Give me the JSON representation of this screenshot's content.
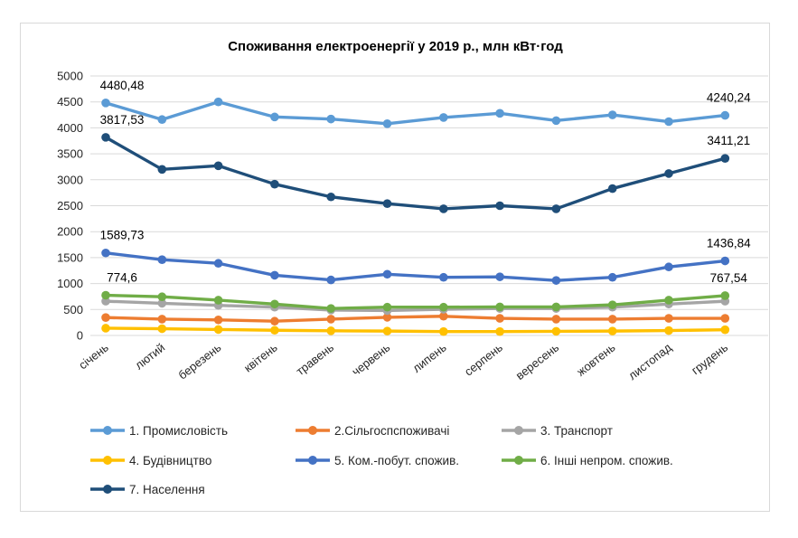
{
  "chart_data": {
    "type": "line",
    "title": "Споживання електроенергії у 2019 р., млн кВт·год",
    "xlabel": "",
    "ylabel": "",
    "ylim": [
      0,
      5000
    ],
    "ytick_step": 500,
    "grid": true,
    "legend_position": "bottom",
    "categories": [
      "січень",
      "лютий",
      "березень",
      "квітень",
      "травень",
      "червень",
      "липень",
      "серпень",
      "вересень",
      "жовтень",
      "листопад",
      "грудень"
    ],
    "series": [
      {
        "name": "1. Промисловість",
        "color": "#5B9BD5",
        "values": [
          4480.48,
          4160,
          4500,
          4210,
          4170,
          4080,
          4200,
          4280,
          4140,
          4250,
          4120,
          4240.24
        ]
      },
      {
        "name": "2.Сільгоспспоживачі",
        "color": "#ED7D31",
        "values": [
          345,
          315,
          300,
          275,
          315,
          350,
          370,
          330,
          315,
          315,
          330,
          330
        ]
      },
      {
        "name": "3. Транспорт",
        "color": "#A5A5A5",
        "values": [
          660,
          620,
          580,
          545,
          490,
          480,
          505,
          520,
          520,
          545,
          605,
          660
        ]
      },
      {
        "name": "4. Будівництво",
        "color": "#FFC000",
        "values": [
          140,
          130,
          115,
          100,
          90,
          85,
          75,
          75,
          80,
          85,
          95,
          110
        ]
      },
      {
        "name": "5. Ком.-побут. спожив.",
        "color": "#4472C4",
        "values": [
          1589.73,
          1460,
          1390,
          1160,
          1070,
          1180,
          1120,
          1130,
          1060,
          1120,
          1320,
          1436.84
        ]
      },
      {
        "name": "6. Інші непром. спожив.",
        "color": "#70AD47",
        "values": [
          774.6,
          745,
          680,
          605,
          520,
          545,
          545,
          550,
          550,
          590,
          680,
          767.54
        ]
      },
      {
        "name": "7. Населення",
        "color": "#1F4E79",
        "values": [
          3817.53,
          3200,
          3270,
          2915,
          2670,
          2540,
          2440,
          2500,
          2440,
          2830,
          3120,
          3411.21
        ]
      }
    ],
    "data_labels": [
      {
        "series": 0,
        "point": 0,
        "text": "4480,48"
      },
      {
        "series": 6,
        "point": 0,
        "text": "3817,53"
      },
      {
        "series": 4,
        "point": 0,
        "text": "1589,73"
      },
      {
        "series": 5,
        "point": 0,
        "text": "774,6"
      },
      {
        "series": 0,
        "point": 11,
        "text": "4240,24"
      },
      {
        "series": 6,
        "point": 11,
        "text": "3411,21"
      },
      {
        "series": 4,
        "point": 11,
        "text": "1436,84"
      },
      {
        "series": 5,
        "point": 11,
        "text": "767,54"
      }
    ]
  }
}
